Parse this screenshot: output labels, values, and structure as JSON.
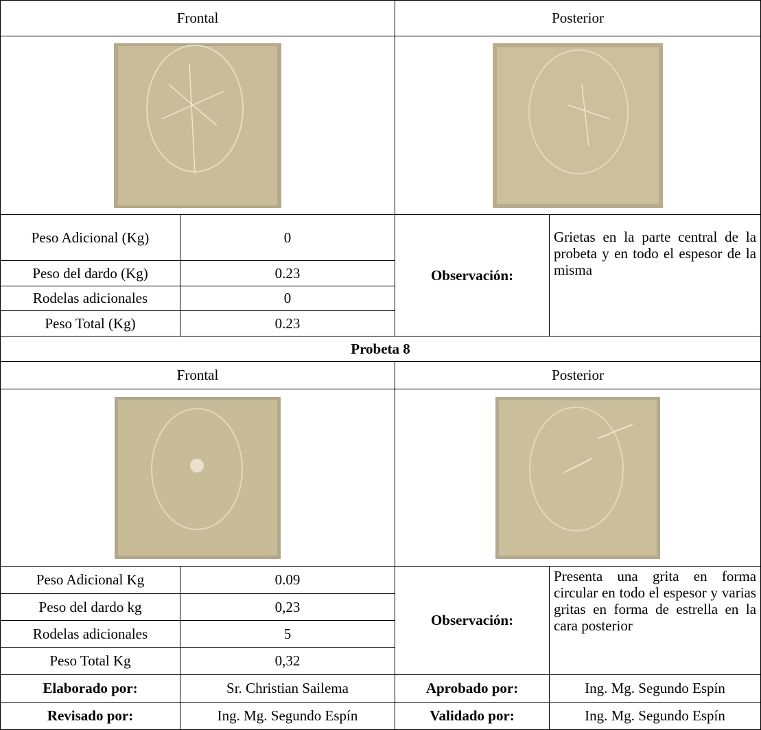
{
  "table": {
    "specimen7": {
      "front_label": "Frontal",
      "back_label": "Posterior",
      "rows": [
        [
          "Peso Adicional (Kg)",
          "0"
        ],
        [
          "Peso del dardo (Kg)",
          "0.23"
        ],
        [
          "Rodelas adicionales",
          "0"
        ],
        [
          "Peso Total (Kg)",
          "0.23"
        ]
      ],
      "observation_label": "Observación:",
      "observation": "Grietas en la parte central de la probeta y en todo el espesor de la misma"
    },
    "specimen8": {
      "title": "Probeta 8",
      "front_label": "Frontal",
      "back_label": "Posterior",
      "rows": [
        [
          "Peso Adicional Kg",
          "0.09"
        ],
        [
          "Peso del dardo kg",
          "0,23"
        ],
        [
          "Rodelas adicionales",
          "5"
        ],
        [
          "Peso Total Kg",
          "0,32"
        ]
      ],
      "observation_label": "Observación:",
      "observation": "Presenta una grita en forma circular en todo el espesor y varias gritas en forma de estrella en la cara posterior"
    },
    "signatures": [
      [
        "Elaborado por:",
        "Sr. Christian Sailema",
        "Aprobado por:",
        "Ing. Mg. Segundo Espín"
      ],
      [
        "Revisado por:",
        "Ing. Mg. Segundo Espín",
        "Validado por:",
        "Ing. Mg. Segundo Espín"
      ]
    ]
  }
}
